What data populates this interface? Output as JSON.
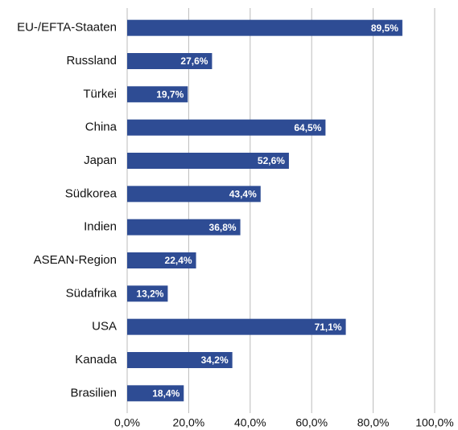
{
  "chart_data": {
    "type": "bar",
    "orientation": "horizontal",
    "categories": [
      "EU-/EFTA-Staaten",
      "Russland",
      "Türkei",
      "China",
      "Japan",
      "Südkorea",
      "Indien",
      "ASEAN-Region",
      "Südafrika",
      "USA",
      "Kanada",
      "Brasilien"
    ],
    "values": [
      89.5,
      27.6,
      19.7,
      64.5,
      52.6,
      43.4,
      36.8,
      22.4,
      13.2,
      71.1,
      34.2,
      18.4
    ],
    "value_labels": [
      "89,5%",
      "27,6%",
      "19,7%",
      "64,5%",
      "52,6%",
      "43,4%",
      "36,8%",
      "22,4%",
      "13,2%",
      "71,1%",
      "34,2%",
      "18,4%"
    ],
    "color": "#2e4c94",
    "xlim": [
      0,
      100
    ],
    "xticks": [
      {
        "value": 0,
        "label": "0,0%"
      },
      {
        "value": 20,
        "label": "20,0%"
      },
      {
        "value": 40,
        "label": "40,0%"
      },
      {
        "value": 60,
        "label": "60,0%"
      },
      {
        "value": 80,
        "label": "80,0%"
      },
      {
        "value": 100,
        "label": "100,0%"
      }
    ],
    "grid": true
  }
}
